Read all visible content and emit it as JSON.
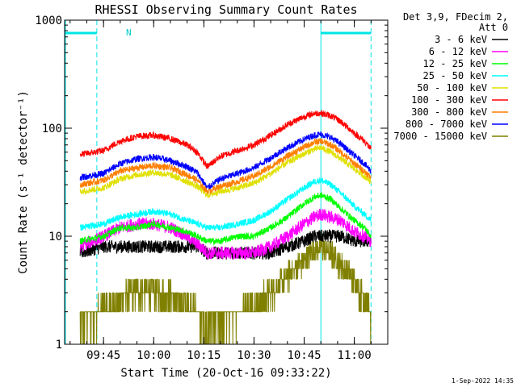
{
  "chart_data": {
    "type": "line",
    "title": "RHESSI Observing Summary Count Rates",
    "xlabel": "Start Time (20-Oct-16 09:33:22)",
    "ylabel": "Count Rate (s⁻¹ detector⁻¹)",
    "y_scale": "log",
    "ylim": [
      1,
      1000
    ],
    "xlim": [
      "09:33:22",
      "11:10"
    ],
    "x_ticks": [
      "09:45",
      "10:00",
      "10:15",
      "10:30",
      "10:45",
      "11:00"
    ],
    "y_ticks": [
      "1",
      "10",
      "100",
      "1000"
    ],
    "legend_header": [
      "Det 3,9, FDecim 2,",
      "Att 0"
    ],
    "legend_position": "right",
    "timestamp": "1-Sep-2022 14:35",
    "night_label": "N",
    "night_start": "09:33:22",
    "night_end": "09:43",
    "day_start": "10:50",
    "day_end": "11:05",
    "grid": false,
    "x": [
      "09:38",
      "09:45",
      "09:50",
      "09:55",
      "10:00",
      "10:05",
      "10:10",
      "10:13",
      "10:16",
      "10:20",
      "10:25",
      "10:30",
      "10:35",
      "10:40",
      "10:45",
      "10:48",
      "10:50",
      "10:53",
      "10:56",
      "11:00",
      "11:03",
      "11:05"
    ],
    "series": [
      {
        "name": "3 - 6 keV",
        "color": "#000000",
        "values": [
          7,
          8,
          8,
          8,
          8,
          8,
          8,
          8,
          7,
          7,
          7,
          7,
          7,
          8,
          9,
          10,
          10,
          10,
          10,
          9,
          9,
          9
        ]
      },
      {
        "name": "6 - 12 keV",
        "color": "#ff00ff",
        "values": [
          8,
          10,
          12,
          13,
          13,
          12,
          10,
          8.5,
          7,
          7,
          7,
          7,
          8,
          10,
          13,
          15,
          16,
          15,
          14,
          11,
          10,
          9
        ]
      },
      {
        "name": "12 - 25 keV",
        "color": "#00ff00",
        "values": [
          9,
          10,
          12,
          12,
          13,
          12,
          11,
          10,
          9,
          9,
          10,
          10,
          12,
          15,
          20,
          23,
          24,
          22,
          18,
          14,
          12,
          10
        ]
      },
      {
        "name": "25 - 50 keV",
        "color": "#00ffff",
        "values": [
          12,
          13,
          15,
          16,
          17,
          16,
          14,
          13,
          12,
          12,
          13,
          14,
          17,
          22,
          28,
          32,
          33,
          30,
          25,
          19,
          16,
          14
        ]
      },
      {
        "name": "50 - 100 keV",
        "color": "#e0e000",
        "values": [
          26,
          28,
          34,
          37,
          39,
          37,
          32,
          29,
          24,
          26,
          28,
          31,
          38,
          48,
          58,
          64,
          66,
          60,
          52,
          42,
          36,
          32
        ]
      },
      {
        "name": "100 - 300 keV",
        "color": "#ff0000",
        "values": [
          57,
          62,
          76,
          84,
          86,
          80,
          70,
          60,
          44,
          55,
          62,
          70,
          86,
          108,
          128,
          137,
          138,
          130,
          115,
          90,
          76,
          64
        ]
      },
      {
        "name": "300 - 800 keV",
        "color": "#ff7f00",
        "values": [
          30,
          33,
          40,
          43,
          45,
          43,
          37,
          33,
          26,
          29,
          32,
          36,
          44,
          55,
          67,
          74,
          76,
          70,
          60,
          47,
          40,
          35
        ]
      },
      {
        "name": "800 - 7000 keV",
        "color": "#0000ff",
        "values": [
          35,
          38,
          47,
          52,
          54,
          50,
          44,
          39,
          28,
          34,
          38,
          43,
          53,
          66,
          79,
          86,
          88,
          82,
          71,
          56,
          47,
          40
        ]
      },
      {
        "name": "7000 - 15000 keV",
        "color": "#808000",
        "values": [
          1.6,
          2.1,
          2.6,
          3.1,
          3.1,
          2.8,
          2.3,
          2,
          1.5,
          1.7,
          2,
          2.3,
          3,
          4.2,
          6,
          7.5,
          7.8,
          7,
          5.5,
          3.8,
          2.6,
          1.8
        ]
      }
    ]
  }
}
